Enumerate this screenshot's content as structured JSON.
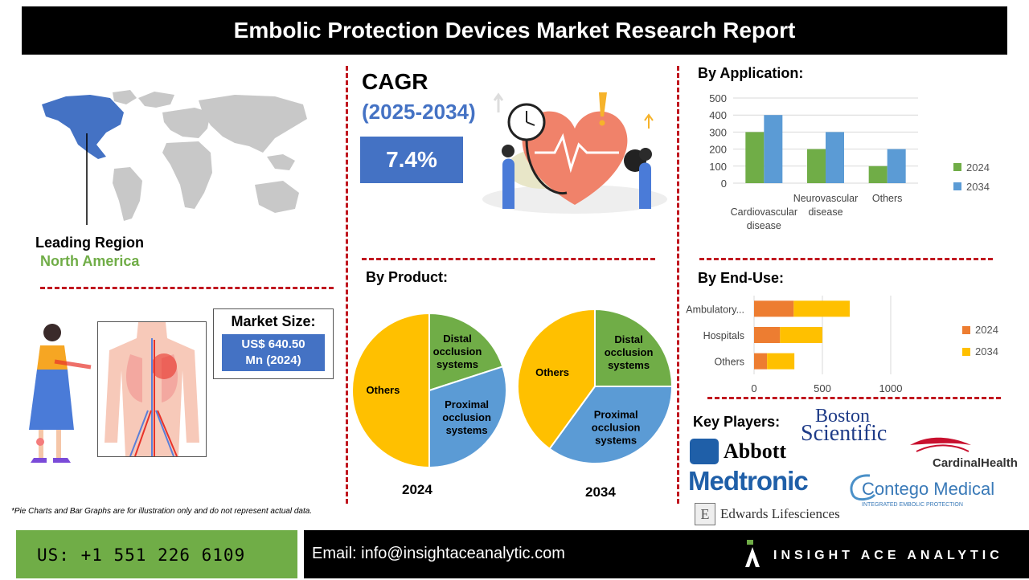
{
  "header": {
    "title": "Embolic Protection Devices Market Research Report"
  },
  "region": {
    "label": "Leading Region",
    "value": "North America"
  },
  "cagr": {
    "title": "CAGR",
    "years": "(2025-2034)",
    "value": "7.4%"
  },
  "market_size": {
    "label": "Market Size:",
    "value_line1": "US$ 640.50",
    "value_line2": "Mn (2024)"
  },
  "footnote": "*Pie Charts and Bar Graphs are for illustration only and do not represent actual data.",
  "contact": {
    "phone": "US: +1 551 226 6109",
    "email": "Email: info@insightaceanalytic.com",
    "brand": "INSIGHT ACE ANALYTIC"
  },
  "key_players": {
    "title": "Key Players:",
    "names": [
      "Boston",
      "Scientific",
      "Abbott",
      "CardinalHealth",
      "Medtronic",
      "Contego Medical",
      "INTEGRATED EMBOLIC PROTECTION",
      "Edwards Lifesciences"
    ]
  },
  "colors": {
    "blue": "#4472c4",
    "chart_blue": "#5b9bd5",
    "green": "#70ad47",
    "orange": "#ed7d31",
    "yellow": "#ffc000",
    "red": "#c0171f"
  },
  "chart_data": [
    {
      "type": "bar",
      "title": "By Application:",
      "categories": [
        "Cardiovascular disease",
        "Neurovascular disease",
        "Others"
      ],
      "series": [
        {
          "name": "2024",
          "values": [
            300,
            200,
            100
          ],
          "color": "#70ad47"
        },
        {
          "name": "2034",
          "values": [
            400,
            300,
            200
          ],
          "color": "#5b9bd5"
        }
      ],
      "ylim": [
        0,
        500
      ],
      "yticks": [
        0,
        100,
        200,
        300,
        400,
        500
      ],
      "grid": true,
      "legend": "right"
    },
    {
      "type": "bar",
      "orientation": "horizontal",
      "stacked": true,
      "title": "By End-Use:",
      "categories": [
        "Ambulatory...",
        "Hospitals",
        "Others"
      ],
      "series": [
        {
          "name": "2024",
          "values": [
            290,
            190,
            95
          ],
          "color": "#ed7d31"
        },
        {
          "name": "2034",
          "values": [
            410,
            310,
            200
          ],
          "color": "#ffc000"
        }
      ],
      "xlim": [
        0,
        1200
      ],
      "xticks": [
        0,
        500,
        1000
      ],
      "grid": true,
      "legend": "right"
    },
    {
      "type": "pie",
      "title": "By Product:",
      "caption": "2024",
      "labels": [
        "Distal occlusion systems",
        "Proximal occlusion systems",
        "Others"
      ],
      "values": [
        20,
        30,
        50
      ],
      "colors": [
        "#70ad47",
        "#5b9bd5",
        "#ffc000"
      ]
    },
    {
      "type": "pie",
      "caption": "2034",
      "labels": [
        "Distal occlusion systems",
        "Proximal occlusion systems",
        "Others"
      ],
      "values": [
        25,
        35,
        40
      ],
      "colors": [
        "#70ad47",
        "#5b9bd5",
        "#ffc000"
      ]
    }
  ]
}
